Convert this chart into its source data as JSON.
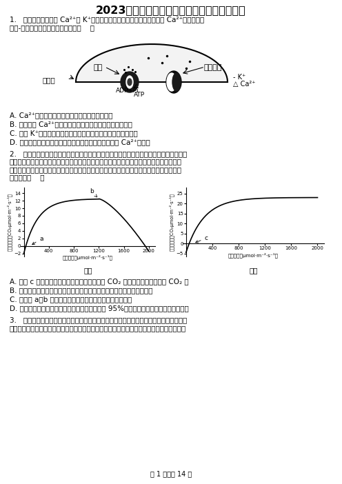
{
  "title": "2023年黑龙江省齐齐哈尔市高考生物二模试卷",
  "page_footer": "第 1 页，共 14 页",
  "q1_line1": "1.   机细胞上存在运输 Ca²⁺和 K⁺的转运蛋白，其中钙泵是细胞膜上参与 Ca²⁺运输的一种",
  "q1_line2": "载体-蛋白。下列相关叙述错误的是（    ）",
  "q1_opts": [
    "A. Ca²⁺通过钙泵泵出胞细胞的方式属于主动运输",
    "B. 钙泵运输 Ca²⁺的过程体现了蛋白质具有运输和催化功能",
    "C. 运输 K⁺的通道蛋白也可将水运出胞细胞且不消耗细胞膜能量",
    "D. 钙泵的磷酸化会导致其空间结构发生变化，进而完成 Ca²⁺的转运"
  ],
  "q2_line1": "2.   某农科站选用株型紧凑的棉花和耐阴的矮生绿豆品种间作种植，通过扩大棉花带和绿豆",
  "q2_line2": "带间的距离、缩小株距，实现了棉花、绿豆双丰收。研究人员选取来自该地区植株冠层的棉",
  "q2_line3": "花、绿豆两种叶片，分别测定不同光照条件下的净光合速率，结果如图所示。下列相关叙述",
  "q2_line4": "错误的是（    ）",
  "q2_opts": [
    "A. 图乙 c 点时叶片单位时间内光合作用消耗的 CO₂ 量等于细胞呼吸产生的 CO₂ 量",
    "B. 据图推测图乙叶片最可能是绿豆的冠层叶，图甲最可能是棉花的冠层叶",
    "C. 图甲中 a、b 点限制叶片光合作用速率的主要因素不相同",
    "D. 要比较两种植物新鲜叶片中叶绿素含量，可用 95%乙醇加入适量无水碳酸钠提取色素"
  ],
  "q3_line1": "3.   水螅是一种多细胞腔肠动物。研究表明，水螅身体的大部分由未分化的干细胞组成，干",
  "q3_line2": "细胞腹有持续分裂的能力，因此水螅的身体处在不断更新的状态：水螅的触角和足内的分化细",
  "diagram_labels": {
    "pump": "钙泵",
    "channel": "通道蛋白",
    "adp": "ADP+Pi",
    "atp": "ATP",
    "membrane": "细胞膜",
    "k": "K⁺",
    "ca": "Ca²⁺"
  },
  "g1_title": "图甲",
  "g1_xlabel": "光照强度（μmol·m⁻²·s⁻¹）",
  "g1_ylabel": "净光合速率（CO₂μmol·m⁻²·s⁻¹）",
  "g1_xticks": [
    400,
    800,
    1200,
    1600,
    2000
  ],
  "g1_yticks": [
    -2,
    0,
    2,
    4,
    6,
    8,
    10,
    12,
    14
  ],
  "g1_ylim": [
    -2.8,
    15.5
  ],
  "g2_title": "图乙",
  "g2_xlabel": "光照强度（μmol·m⁻²·s⁻¹）",
  "g2_ylabel": "净光合速率（CO₂μmol·m⁻²·s⁻¹）",
  "g2_xticks": [
    400,
    800,
    1200,
    1600,
    2000
  ],
  "g2_yticks": [
    -5,
    0,
    5,
    10,
    15,
    20,
    25
  ],
  "g2_ylim": [
    -6.5,
    28
  ]
}
